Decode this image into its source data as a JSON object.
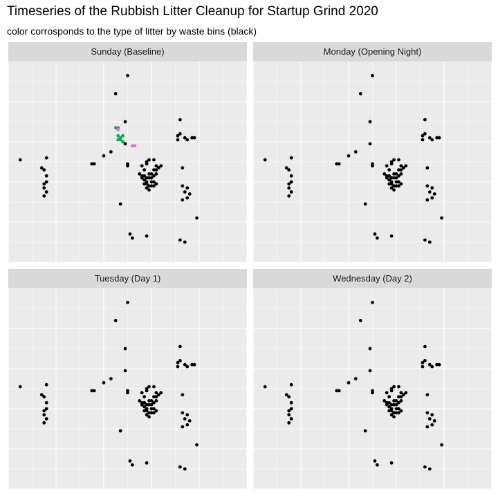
{
  "title": "Timeseries of the Rubbish Litter Cleanup for Startup Grind 2020",
  "subtitle": "color corrosponds to the type of litter by waste bins (black)",
  "colors": {
    "panel_background": "#ebebeb",
    "strip_background": "#d9d9d9",
    "grid": "#ffffff",
    "bin": "#000000",
    "litter_green": "#00b050",
    "litter_pink": "#e070d0",
    "litter_purple": "#9060b0"
  },
  "chart_data": {
    "type": "scatter",
    "facet_by": "day",
    "x_range": [
      0,
      100
    ],
    "y_range": [
      0,
      100
    ],
    "axis_labels_shown": false,
    "grid": true,
    "bins": [
      [
        5,
        51
      ],
      [
        16,
        52
      ],
      [
        14,
        47
      ],
      [
        15,
        46
      ],
      [
        16,
        43
      ],
      [
        16,
        40
      ],
      [
        15,
        39
      ],
      [
        15,
        37
      ],
      [
        16,
        35
      ],
      [
        15,
        33
      ],
      [
        35,
        49
      ],
      [
        36,
        49
      ],
      [
        40,
        53
      ],
      [
        43,
        55
      ],
      [
        45,
        84
      ],
      [
        50,
        93
      ],
      [
        49,
        70
      ],
      [
        49,
        59
      ],
      [
        50,
        49
      ],
      [
        50,
        48
      ],
      [
        47,
        29
      ],
      [
        51,
        14
      ],
      [
        52,
        12
      ],
      [
        58,
        13
      ],
      [
        56,
        48
      ],
      [
        57,
        46
      ],
      [
        58,
        49
      ],
      [
        58,
        50
      ],
      [
        59,
        51
      ],
      [
        61,
        51
      ],
      [
        62,
        48
      ],
      [
        55,
        44
      ],
      [
        56,
        43
      ],
      [
        57,
        43
      ],
      [
        58,
        42
      ],
      [
        59,
        44
      ],
      [
        60,
        44
      ],
      [
        61,
        46
      ],
      [
        62,
        46
      ],
      [
        63,
        47
      ],
      [
        64,
        48
      ],
      [
        56,
        42
      ],
      [
        57,
        41
      ],
      [
        58,
        40
      ],
      [
        59,
        42
      ],
      [
        60,
        42
      ],
      [
        61,
        43
      ],
      [
        62,
        44
      ],
      [
        57,
        39
      ],
      [
        58,
        39
      ],
      [
        59,
        38
      ],
      [
        60,
        40
      ],
      [
        61,
        40
      ],
      [
        62,
        39
      ],
      [
        58,
        37
      ],
      [
        59,
        36
      ],
      [
        60,
        38
      ],
      [
        61,
        38
      ],
      [
        72,
        71
      ],
      [
        71,
        63
      ],
      [
        72,
        64
      ],
      [
        71,
        61
      ],
      [
        75,
        61
      ],
      [
        74,
        62
      ],
      [
        77,
        62
      ],
      [
        78,
        62
      ],
      [
        73,
        47
      ],
      [
        73,
        38
      ],
      [
        75,
        37
      ],
      [
        74,
        35
      ],
      [
        76,
        34
      ],
      [
        75,
        32
      ],
      [
        73,
        31
      ],
      [
        79,
        22
      ],
      [
        72,
        11
      ],
      [
        74,
        10
      ]
    ],
    "facets": [
      {
        "label": "Sunday (Baseline)",
        "litter": [
          {
            "x": 45,
            "y": 67,
            "color": "green"
          },
          {
            "x": 46,
            "y": 67,
            "color": "purple"
          },
          {
            "x": 46,
            "y": 66,
            "color": "pink"
          },
          {
            "x": 46,
            "y": 63,
            "color": "green"
          },
          {
            "x": 47,
            "y": 62,
            "color": "green"
          },
          {
            "x": 48,
            "y": 63,
            "color": "green"
          },
          {
            "x": 47,
            "y": 61,
            "color": "green"
          },
          {
            "x": 48,
            "y": 60,
            "color": "green"
          },
          {
            "x": 46,
            "y": 61,
            "color": "green"
          },
          {
            "x": 52,
            "y": 58,
            "color": "pink"
          },
          {
            "x": 53,
            "y": 58,
            "color": "pink"
          }
        ]
      },
      {
        "label": "Monday (Opening Night)",
        "litter": []
      },
      {
        "label": "Tuesday (Day 1)",
        "litter": []
      },
      {
        "label": "Wednesday (Day 2)",
        "litter": []
      }
    ]
  }
}
